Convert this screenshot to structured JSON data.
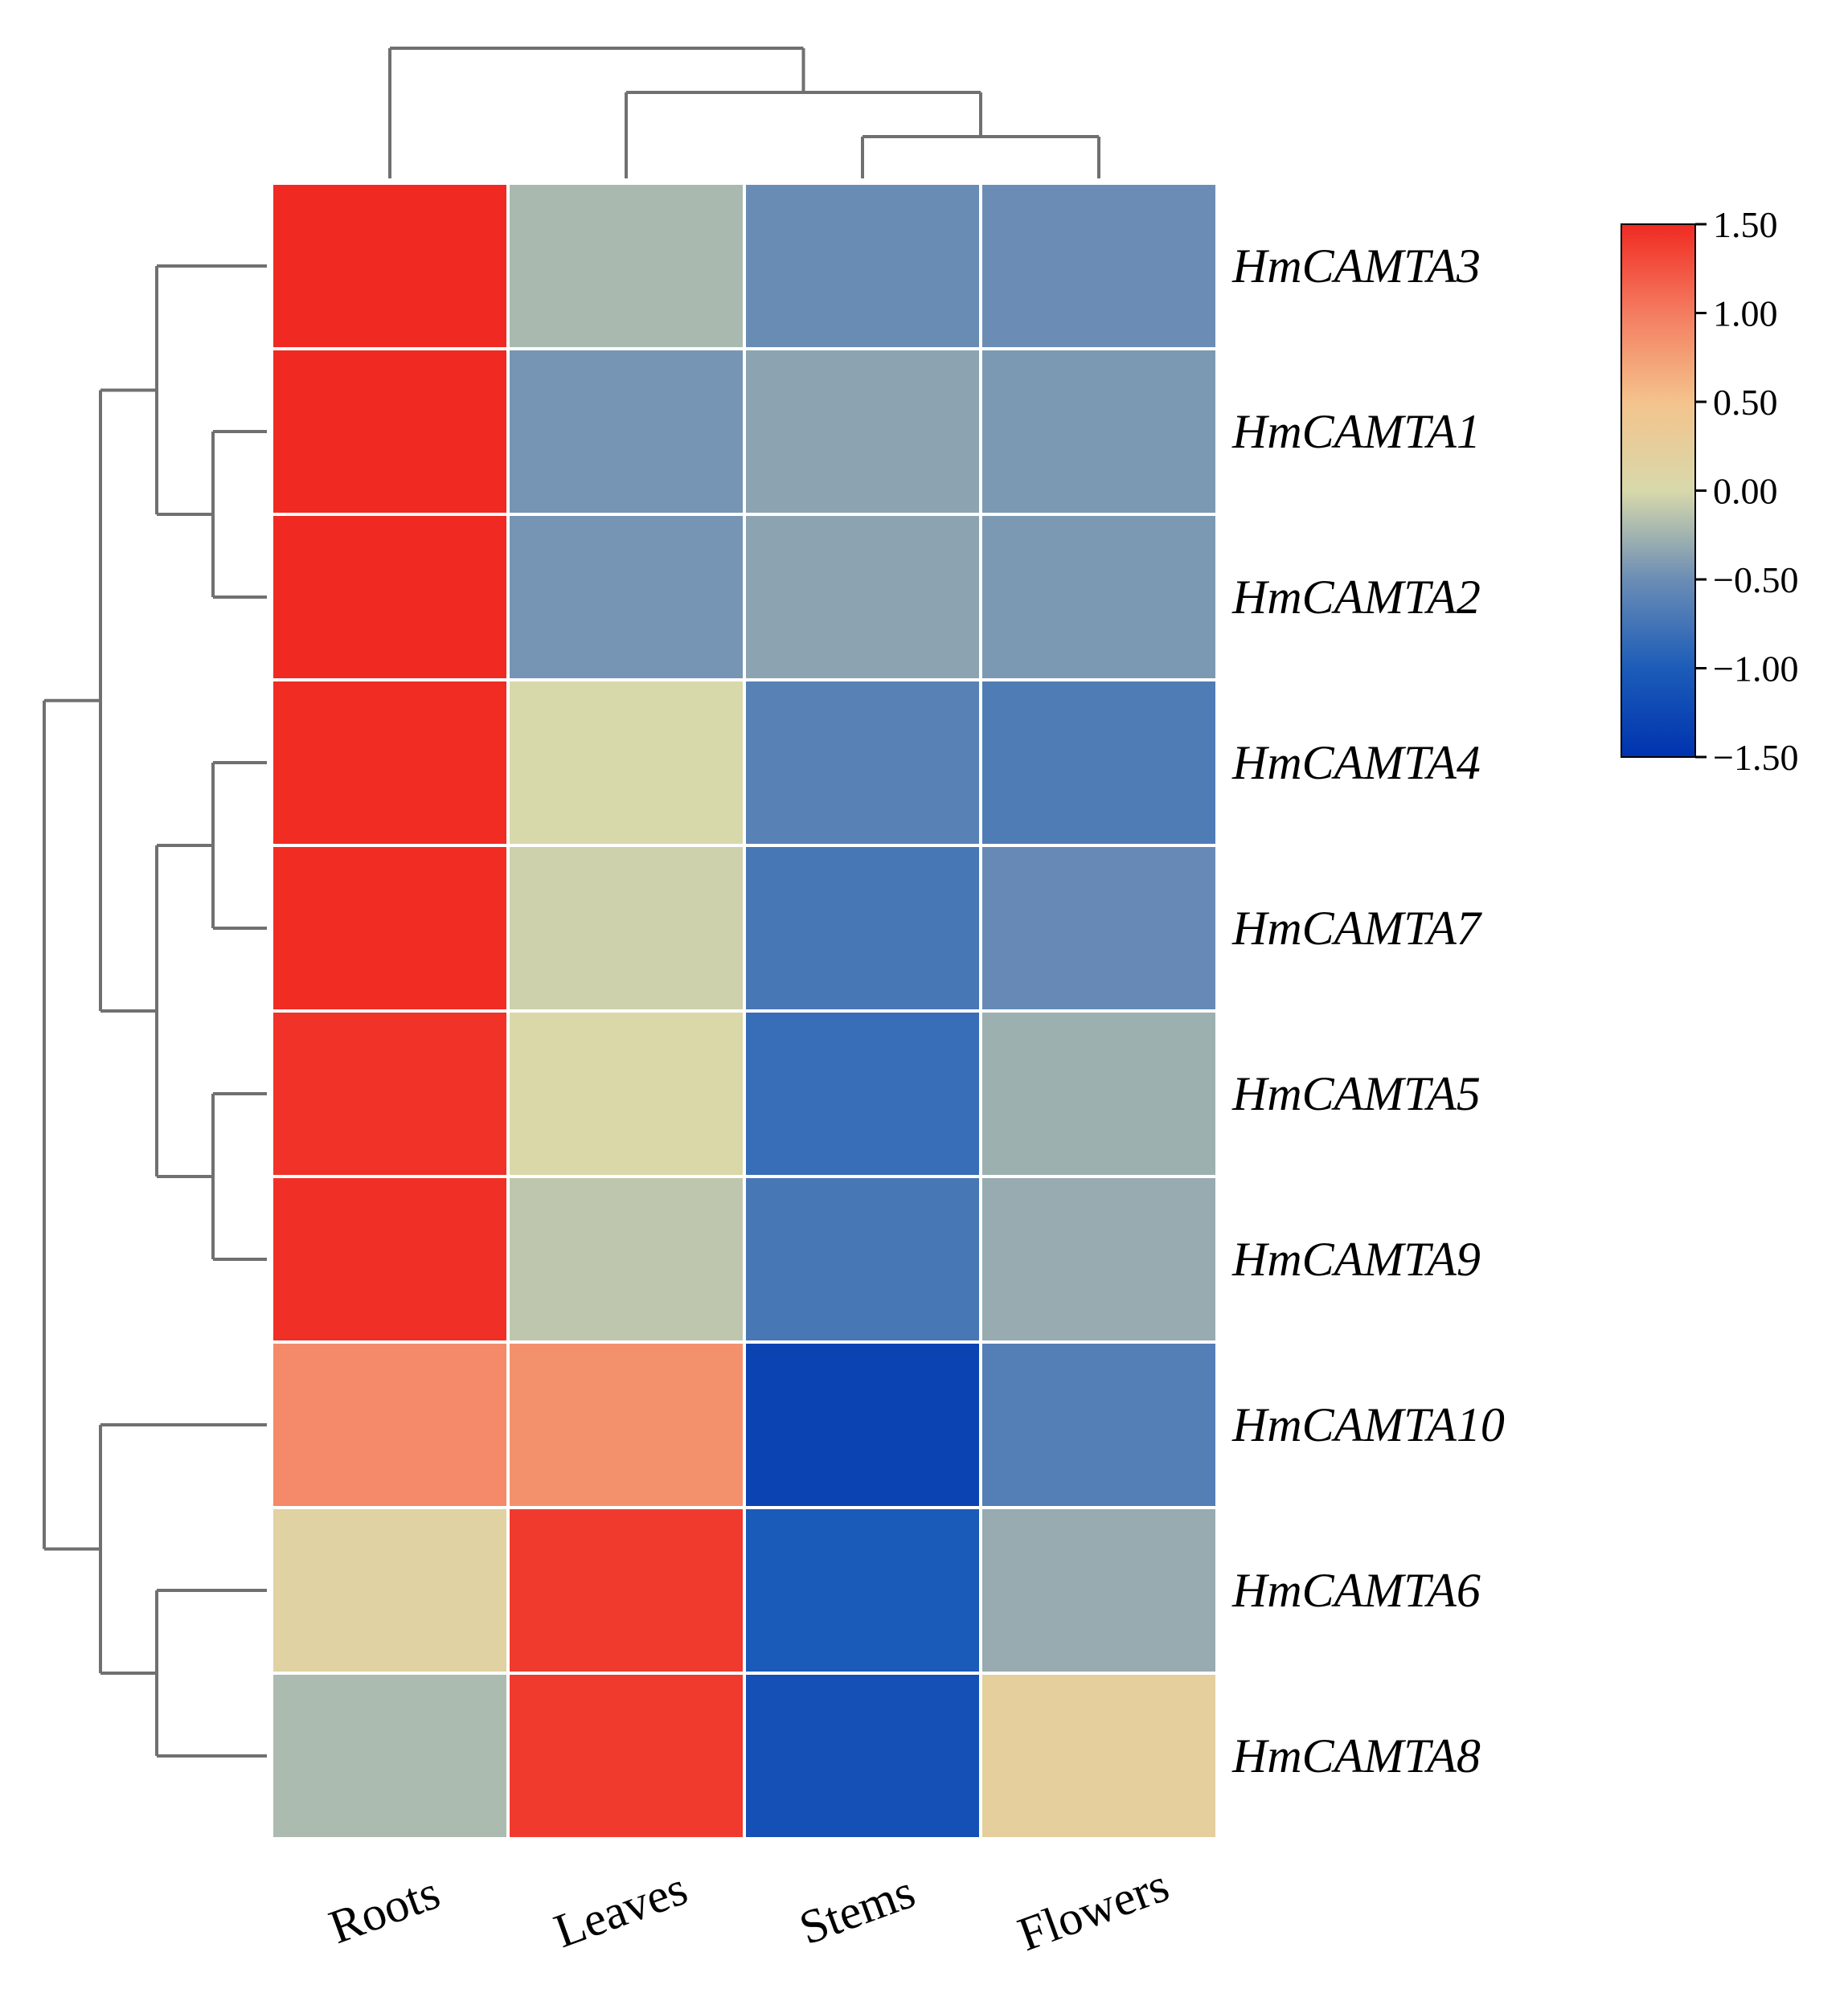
{
  "chart_data": {
    "type": "heatmap",
    "title": "",
    "columns": [
      "Roots",
      "Leaves",
      "Stems",
      "Flowers"
    ],
    "rows": [
      "HmCAMTA3",
      "HmCAMTA1",
      "HmCAMTA2",
      "HmCAMTA4",
      "HmCAMTA7",
      "HmCAMTA5",
      "HmCAMTA9",
      "HmCAMTA10",
      "HmCAMTA6",
      "HmCAMTA8"
    ],
    "values": [
      [
        1.5,
        -0.21,
        -0.51,
        -0.5
      ],
      [
        1.5,
        -0.45,
        -0.35,
        -0.42
      ],
      [
        1.5,
        -0.45,
        -0.35,
        -0.42
      ],
      [
        1.49,
        0.0,
        -0.62,
        -0.67
      ],
      [
        1.49,
        -0.05,
        -0.72,
        -0.53
      ],
      [
        1.45,
        0.03,
        -0.82,
        -0.27
      ],
      [
        1.47,
        -0.12,
        -0.72,
        -0.3
      ],
      [
        0.9,
        0.85,
        -1.3,
        -0.65
      ],
      [
        0.15,
        1.4,
        -1.03,
        -0.3
      ],
      [
        -0.2,
        1.4,
        -1.15,
        0.22
      ]
    ],
    "colorbar": {
      "min": -1.5,
      "max": 1.5,
      "ticks": [
        1.5,
        1.0,
        0.5,
        0.0,
        -0.5,
        -1.0,
        -1.5
      ],
      "tick_labels": [
        "1.50",
        "1.00",
        "0.50",
        "0.00",
        "−0.50",
        "−1.00",
        "−1.50"
      ],
      "colors": [
        "#0033b0",
        "#1c5cb8",
        "#6b8db5",
        "#d8d9ab",
        "#f4c38c",
        "#f47c60",
        "#f02a22"
      ]
    },
    "row_dendrogram": {
      "leaf_order": [
        "HmCAMTA3",
        "HmCAMTA1",
        "HmCAMTA2",
        "HmCAMTA4",
        "HmCAMTA7",
        "HmCAMTA5",
        "HmCAMTA9",
        "HmCAMTA10",
        "HmCAMTA6",
        "HmCAMTA8"
      ],
      "merges": [
        {
          "a": "HmCAMTA1",
          "b": "HmCAMTA2",
          "height": 1
        },
        {
          "a": "HmCAMTA3",
          "b": "(HmCAMTA1,HmCAMTA2)",
          "height": 2
        },
        {
          "a": "HmCAMTA4",
          "b": "HmCAMTA7",
          "height": 1
        },
        {
          "a": "HmCAMTA5",
          "b": "HmCAMTA9",
          "height": 1
        },
        {
          "a": "(HmCAMTA4,HmCAMTA7)",
          "b": "(HmCAMTA5,HmCAMTA9)",
          "height": 2
        },
        {
          "a": "(HmCAMTA3,(HmCAMTA1,HmCAMTA2))",
          "b": "((HmCAMTA4,HmCAMTA7),(HmCAMTA5,HmCAMTA9))",
          "height": 3
        },
        {
          "a": "HmCAMTA6",
          "b": "HmCAMTA8",
          "height": 2
        },
        {
          "a": "HmCAMTA10",
          "b": "(HmCAMTA6,HmCAMTA8)",
          "height": 3
        },
        {
          "a": "upper-cluster",
          "b": "lower-cluster",
          "height": 4
        }
      ]
    },
    "column_dendrogram": {
      "leaf_order": [
        "Roots",
        "Leaves",
        "Stems",
        "Flowers"
      ],
      "merges": [
        {
          "a": "Stems",
          "b": "Flowers",
          "height": 1
        },
        {
          "a": "Leaves",
          "b": "(Stems,Flowers)",
          "height": 2
        },
        {
          "a": "Roots",
          "b": "(Leaves,(Stems,Flowers))",
          "height": 3
        }
      ]
    }
  }
}
